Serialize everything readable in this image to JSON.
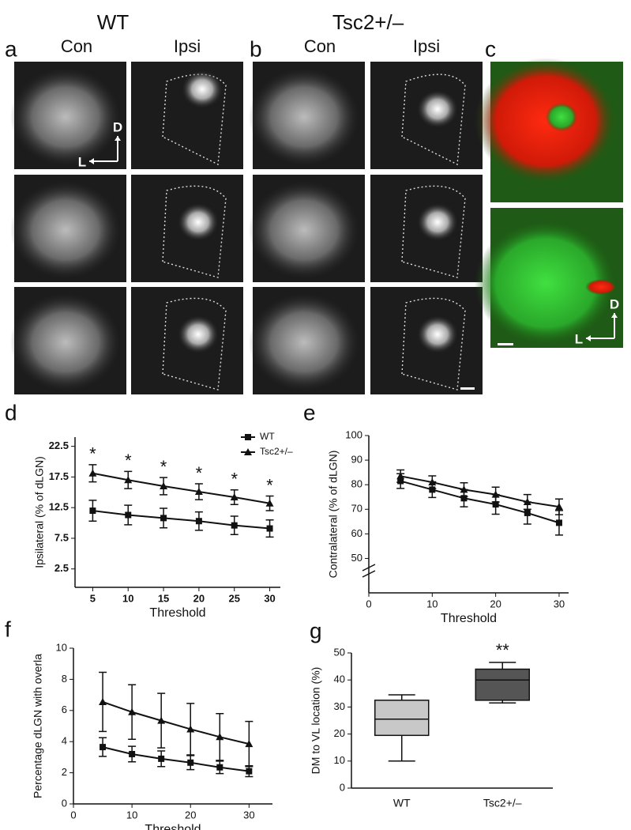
{
  "figure": {
    "panel_labels": [
      "a",
      "b",
      "c",
      "d",
      "e",
      "f",
      "g"
    ],
    "genotypes": [
      "WT",
      "Tsc2+/–"
    ],
    "columns": [
      "Con",
      "Ipsi",
      "Con",
      "Ipsi"
    ],
    "orientation": [
      {
        "dorsal": "D",
        "lateral": "L"
      },
      {
        "dorsal": "D",
        "lateral": "L"
      }
    ]
  },
  "chart_data": [
    {
      "type": "line",
      "x_label": "Threshold",
      "y_label": "Ipsilateral (% of dLGN)",
      "x": [
        5,
        10,
        15,
        20,
        25,
        30
      ],
      "xlim": [
        2.5,
        31.5
      ],
      "xticks": [
        5,
        10,
        15,
        20,
        25,
        30
      ],
      "ylim": [
        -0.5,
        24
      ],
      "yticks": [
        2.5,
        7.5,
        12.5,
        17.5,
        22.5
      ],
      "legend": "top-right",
      "series": [
        {
          "name": "WT",
          "color": "#111111",
          "marker": "square",
          "values": [
            12.0,
            11.3,
            10.8,
            10.3,
            9.6,
            9.1
          ],
          "errors": [
            1.7,
            1.6,
            1.6,
            1.5,
            1.5,
            1.4
          ]
        },
        {
          "name": "Tsc2+/–",
          "color": "#111111",
          "marker": "triangle",
          "values": [
            18.1,
            17.0,
            16.0,
            15.1,
            14.2,
            13.2
          ],
          "errors": [
            1.4,
            1.4,
            1.4,
            1.3,
            1.2,
            1.2
          ]
        }
      ],
      "annotations": [
        "*",
        "*",
        "*",
        "*",
        "*",
        "*"
      ]
    },
    {
      "type": "line",
      "x_label": "Threshold",
      "y_label": "Contralateral (% of dLGN)",
      "x": [
        5,
        10,
        15,
        20,
        25,
        30
      ],
      "xlim": [
        0,
        31.5
      ],
      "xticks": [
        0,
        10,
        20,
        30
      ],
      "ylim": [
        36,
        100
      ],
      "yticks": [
        50,
        60,
        70,
        80,
        90,
        100
      ],
      "axis_break": true,
      "series": [
        {
          "name": "WT",
          "color": "#111111",
          "marker": "square",
          "values": [
            81.5,
            78,
            74.5,
            72,
            68.5,
            64.5
          ],
          "errors": [
            3,
            3.2,
            3.5,
            4,
            4.5,
            5
          ]
        },
        {
          "name": "Tsc2+/–",
          "color": "#111111",
          "marker": "triangle",
          "values": [
            83.5,
            81,
            78,
            76,
            73,
            71
          ],
          "errors": [
            2.5,
            2.6,
            2.8,
            3,
            3,
            3.2
          ]
        }
      ]
    },
    {
      "type": "line",
      "x_label": "Threshold",
      "y_label": "Percentage dLGN with overla",
      "x": [
        5,
        10,
        15,
        20,
        25,
        30
      ],
      "xlim": [
        0,
        34
      ],
      "xticks": [
        0,
        10,
        20,
        30
      ],
      "ylim": [
        0,
        10
      ],
      "yticks": [
        0,
        2,
        4,
        6,
        8,
        10
      ],
      "series": [
        {
          "name": "WT",
          "color": "#111111",
          "marker": "square",
          "values": [
            3.65,
            3.2,
            2.9,
            2.65,
            2.35,
            2.1
          ],
          "errors": [
            0.6,
            0.5,
            0.5,
            0.45,
            0.4,
            0.35
          ]
        },
        {
          "name": "Tsc2+/–",
          "color": "#111111",
          "marker": "triangle",
          "values": [
            6.55,
            5.9,
            5.35,
            4.8,
            4.3,
            3.85
          ],
          "errors": [
            1.9,
            1.75,
            1.75,
            1.65,
            1.5,
            1.45
          ]
        }
      ]
    },
    {
      "type": "box",
      "y_label": "DM to VL location (%)",
      "categories": [
        "WT",
        "Tsc2+/–"
      ],
      "ylim": [
        0,
        50
      ],
      "yticks": [
        0,
        10,
        20,
        30,
        40,
        50
      ],
      "boxes": [
        {
          "min": 10,
          "q1": 19.5,
          "median": 25.5,
          "q3": 32.5,
          "max": 34.5,
          "color": "#c8c8c8"
        },
        {
          "min": 31.5,
          "q1": 32.5,
          "median": 40,
          "q3": 44,
          "max": 46.5,
          "color": "#555555"
        }
      ],
      "annotations": [
        "**"
      ]
    }
  ]
}
